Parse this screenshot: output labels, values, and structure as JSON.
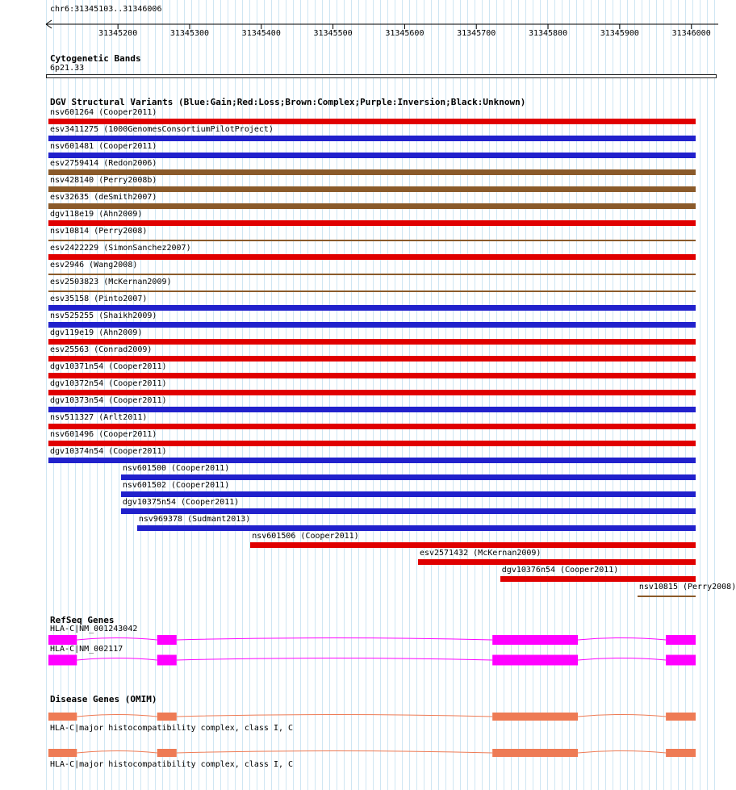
{
  "ruler": {
    "label": "chr6:31345103..31346006",
    "start": 31345103,
    "end": 31346006,
    "ticks": [
      {
        "pos": 31345200,
        "label": "31345200"
      },
      {
        "pos": 31345300,
        "label": "31345300"
      },
      {
        "pos": 31345400,
        "label": "31345400"
      },
      {
        "pos": 31345500,
        "label": "31345500"
      },
      {
        "pos": 31345600,
        "label": "31345600"
      },
      {
        "pos": 31345700,
        "label": "31345700"
      },
      {
        "pos": 31345800,
        "label": "31345800"
      },
      {
        "pos": 31345900,
        "label": "31345900"
      },
      {
        "pos": 31346000,
        "label": "31346000"
      }
    ]
  },
  "cytobands": {
    "title": "Cytogenetic Bands",
    "band": "6p21.33"
  },
  "dgv": {
    "title": "DGV Structural Variants (Blue:Gain;Red:Loss;Brown:Complex;Purple:Inversion;Black:Unknown)",
    "colors": {
      "gain": "#2121cc",
      "loss": "#e00000",
      "complex": "#8a5a2a"
    },
    "variants": [
      {
        "label": "nsv601264 (Cooper2011)",
        "type": "loss",
        "style": "thick",
        "start": 0,
        "end": 1
      },
      {
        "label": "esv3411275 (1000GenomesConsortiumPilotProject)",
        "type": "gain",
        "style": "thick",
        "start": 0,
        "end": 1
      },
      {
        "label": "nsv601481 (Cooper2011)",
        "type": "gain",
        "style": "thick",
        "start": 0,
        "end": 1
      },
      {
        "label": "esv2759414 (Redon2006)",
        "type": "complex",
        "style": "thick",
        "start": 0,
        "end": 1
      },
      {
        "label": "nsv428140 (Perry2008b)",
        "type": "complex",
        "style": "thick",
        "start": 0,
        "end": 1
      },
      {
        "label": "esv32635 (deSmith2007)",
        "type": "complex",
        "style": "thick",
        "start": 0,
        "end": 1
      },
      {
        "label": "dgv118e19 (Ahn2009)",
        "type": "loss",
        "style": "thick",
        "start": 0,
        "end": 1
      },
      {
        "label": "nsv10814 (Perry2008)",
        "type": "complex",
        "style": "thin",
        "start": 0,
        "end": 1
      },
      {
        "label": "esv2422229 (SimonSanchez2007)",
        "type": "loss",
        "style": "thick",
        "start": 0,
        "end": 1
      },
      {
        "label": "esv2946 (Wang2008)",
        "type": "complex",
        "style": "thin",
        "start": 0,
        "end": 1
      },
      {
        "label": "esv2503823 (McKernan2009)",
        "type": "complex",
        "style": "thin",
        "start": 0,
        "end": 1
      },
      {
        "label": "esv35158 (Pinto2007)",
        "type": "gain",
        "style": "thick",
        "start": 0,
        "end": 1
      },
      {
        "label": "nsv525255 (Shaikh2009)",
        "type": "gain",
        "style": "thick",
        "start": 0,
        "end": 1
      },
      {
        "label": "dgv119e19 (Ahn2009)",
        "type": "loss",
        "style": "thick",
        "start": 0,
        "end": 1
      },
      {
        "label": "esv25563 (Conrad2009)",
        "type": "loss",
        "style": "thick",
        "start": 0,
        "end": 1
      },
      {
        "label": "dgv10371n54 (Cooper2011)",
        "type": "loss",
        "style": "thick",
        "start": 0,
        "end": 1
      },
      {
        "label": "dgv10372n54 (Cooper2011)",
        "type": "loss",
        "style": "thick",
        "start": 0,
        "end": 1
      },
      {
        "label": "dgv10373n54 (Cooper2011)",
        "type": "gain",
        "style": "thick",
        "start": 0,
        "end": 1
      },
      {
        "label": "nsv511327 (Arlt2011)",
        "type": "loss",
        "style": "thick",
        "start": 0,
        "end": 1
      },
      {
        "label": "nsv601496 (Cooper2011)",
        "type": "loss",
        "style": "thick",
        "start": 0,
        "end": 1
      },
      {
        "label": "dgv10374n54 (Cooper2011)",
        "type": "gain",
        "style": "thick",
        "start": 0,
        "end": 1
      },
      {
        "label": "nsv601500 (Cooper2011)",
        "type": "gain",
        "style": "thick",
        "start": 0.112,
        "end": 1
      },
      {
        "label": "nsv601502 (Cooper2011)",
        "type": "gain",
        "style": "thick",
        "start": 0.112,
        "end": 1
      },
      {
        "label": "dgv10375n54 (Cooper2011)",
        "type": "gain",
        "style": "thick",
        "start": 0.112,
        "end": 1
      },
      {
        "label": "nsv969378 (Sudmant2013)",
        "type": "gain",
        "style": "thick",
        "start": 0.137,
        "end": 1
      },
      {
        "label": "nsv601506 (Cooper2011)",
        "type": "loss",
        "style": "thick",
        "start": 0.312,
        "end": 1
      },
      {
        "label": "esv2571432 (McKernan2009)",
        "type": "loss",
        "style": "thick",
        "start": 0.571,
        "end": 1
      },
      {
        "label": "dgv10376n54 (Cooper2011)",
        "type": "loss",
        "style": "thick",
        "start": 0.698,
        "end": 1
      },
      {
        "label": "nsv10815 (Perry2008)",
        "type": "complex",
        "style": "thin",
        "start": 0.91,
        "end": 1
      }
    ]
  },
  "refseq": {
    "title": "RefSeq Genes",
    "color": "#ff00ff",
    "genes": [
      {
        "label": "HLA-C|NM_001243042",
        "exons": [
          [
            0,
            0.044
          ],
          [
            0.168,
            0.198
          ],
          [
            0.686,
            0.818
          ],
          [
            0.954,
            1
          ]
        ]
      },
      {
        "label": "HLA-C|NM_002117",
        "exons": [
          [
            0,
            0.044
          ],
          [
            0.168,
            0.198
          ],
          [
            0.686,
            0.818
          ],
          [
            0.954,
            1
          ]
        ]
      }
    ]
  },
  "omim": {
    "title": "Disease Genes (OMIM)",
    "color": "#ee7b55",
    "genes": [
      {
        "label": "HLA-C|major histocompatibility complex, class I, C",
        "exons": [
          [
            0,
            0.044
          ],
          [
            0.168,
            0.198
          ],
          [
            0.686,
            0.818
          ],
          [
            0.954,
            1
          ]
        ]
      },
      {
        "label": "HLA-C|major histocompatibility complex, class I, C",
        "exons": [
          [
            0,
            0.044
          ],
          [
            0.168,
            0.198
          ],
          [
            0.686,
            0.818
          ],
          [
            0.954,
            1
          ]
        ]
      }
    ]
  }
}
